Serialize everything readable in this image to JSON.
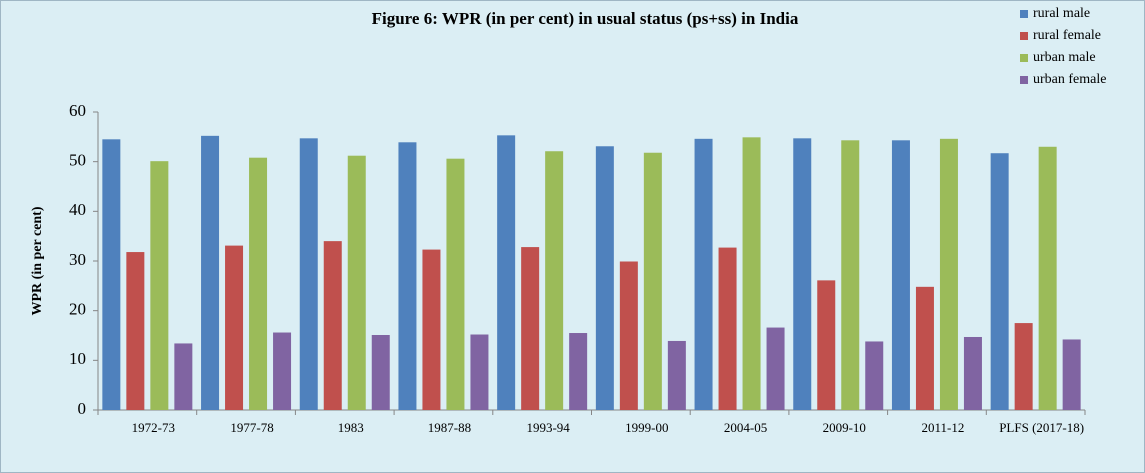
{
  "chart_data": {
    "type": "bar",
    "title": "Figure 6: WPR (in per cent) in usual status (ps+ss) in India",
    "y_label": "WPR (in per cent)",
    "categories": [
      "1972-73",
      "1977-78",
      "1983",
      "1987-88",
      "1993-94",
      "1999-00",
      "2004-05",
      "2009-10",
      "2011-12",
      "PLFS (2017-18)"
    ],
    "series": [
      {
        "name": "rural male",
        "color": "#4f81bd",
        "values": [
          54.5,
          55.2,
          54.7,
          53.9,
          55.3,
          53.1,
          54.6,
          54.7,
          54.3,
          51.7
        ]
      },
      {
        "name": "rural female",
        "color": "#c0504d",
        "values": [
          31.8,
          33.1,
          34.0,
          32.3,
          32.8,
          29.9,
          32.7,
          26.1,
          24.8,
          17.5
        ]
      },
      {
        "name": "urban male",
        "color": "#9bbb59",
        "values": [
          50.1,
          50.8,
          51.2,
          50.6,
          52.1,
          51.8,
          54.9,
          54.3,
          54.6,
          53.0
        ]
      },
      {
        "name": "urban female",
        "color": "#8064a2",
        "values": [
          13.4,
          15.6,
          15.1,
          15.2,
          15.5,
          13.9,
          16.6,
          13.8,
          14.7,
          14.2
        ]
      }
    ],
    "ylim": [
      0,
      60
    ],
    "yticks": [
      0,
      10,
      20,
      30,
      40,
      50,
      60
    ],
    "grid": false,
    "legend": "top-right"
  }
}
